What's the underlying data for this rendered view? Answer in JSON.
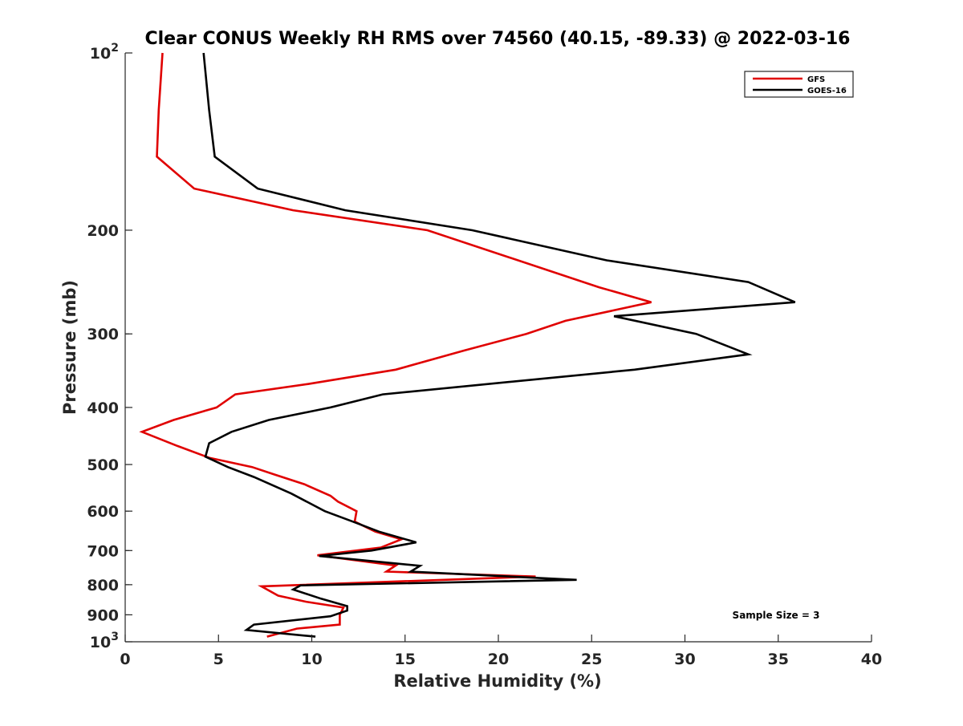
{
  "chart_data": {
    "type": "line",
    "title": "Clear CONUS Weekly RH RMS over 74560 (40.15, -89.33) @ 2022-03-16",
    "xlabel": "Relative Humidity (%)",
    "ylabel": "Pressure (mb)",
    "xlim": [
      0,
      40
    ],
    "ylim": [
      100,
      1000
    ],
    "y_scale": "log",
    "y_reversed": true,
    "x_ticks": [
      0,
      5,
      10,
      15,
      20,
      25,
      30,
      35,
      40
    ],
    "y_ticks": [
      {
        "value": 100,
        "base": "10",
        "exp": "2"
      },
      {
        "value": 200,
        "label": "200"
      },
      {
        "value": 300,
        "label": "300"
      },
      {
        "value": 400,
        "label": "400"
      },
      {
        "value": 500,
        "label": "500"
      },
      {
        "value": 600,
        "label": "600"
      },
      {
        "value": 700,
        "label": "700"
      },
      {
        "value": 800,
        "label": "800"
      },
      {
        "value": 900,
        "label": "900"
      },
      {
        "value": 1000,
        "base": "10",
        "exp": "3"
      }
    ],
    "grid": false,
    "legend_position": "top-right",
    "annotation": "Sample Size = 3",
    "series": [
      {
        "name": "GFS",
        "color": "#e00000",
        "points": [
          [
            2.0,
            100
          ],
          [
            1.8,
            125
          ],
          [
            1.7,
            150
          ],
          [
            3.7,
            170
          ],
          [
            9.0,
            185
          ],
          [
            16.2,
            200
          ],
          [
            25.4,
            250
          ],
          [
            28.2,
            265
          ],
          [
            23.6,
            285
          ],
          [
            21.5,
            300
          ],
          [
            18.2,
            320
          ],
          [
            14.5,
            345
          ],
          [
            9.8,
            365
          ],
          [
            5.9,
            380
          ],
          [
            4.9,
            400
          ],
          [
            2.6,
            420
          ],
          [
            0.9,
            440
          ],
          [
            2.8,
            465
          ],
          [
            4.5,
            487
          ],
          [
            6.8,
            505
          ],
          [
            8.0,
            520
          ],
          [
            9.6,
            540
          ],
          [
            11.0,
            565
          ],
          [
            11.4,
            578
          ],
          [
            12.4,
            600
          ],
          [
            12.3,
            625
          ],
          [
            13.4,
            650
          ],
          [
            14.8,
            670
          ],
          [
            13.7,
            692
          ],
          [
            10.3,
            713
          ],
          [
            14.5,
            742
          ],
          [
            14.0,
            760
          ],
          [
            22.0,
            775
          ],
          [
            7.3,
            805
          ],
          [
            8.2,
            835
          ],
          [
            9.7,
            855
          ],
          [
            11.7,
            875
          ],
          [
            11.5,
            900
          ],
          [
            11.5,
            935
          ],
          [
            9.2,
            950
          ],
          [
            7.6,
            980
          ]
        ]
      },
      {
        "name": "GOES-16",
        "color": "#000000",
        "points": [
          [
            4.2,
            100
          ],
          [
            4.5,
            125
          ],
          [
            4.8,
            150
          ],
          [
            7.1,
            170
          ],
          [
            11.8,
            185
          ],
          [
            18.6,
            200
          ],
          [
            25.8,
            225
          ],
          [
            33.4,
            245
          ],
          [
            35.9,
            265
          ],
          [
            26.2,
            280
          ],
          [
            30.6,
            300
          ],
          [
            33.4,
            325
          ],
          [
            27.3,
            345
          ],
          [
            13.8,
            380
          ],
          [
            11.0,
            400
          ],
          [
            7.7,
            420
          ],
          [
            5.7,
            440
          ],
          [
            4.5,
            460
          ],
          [
            4.3,
            485
          ],
          [
            5.5,
            505
          ],
          [
            6.9,
            525
          ],
          [
            8.9,
            560
          ],
          [
            10.7,
            600
          ],
          [
            12.2,
            625
          ],
          [
            13.6,
            650
          ],
          [
            15.6,
            678
          ],
          [
            13.2,
            700
          ],
          [
            10.4,
            715
          ],
          [
            15.8,
            743
          ],
          [
            15.3,
            760
          ],
          [
            24.2,
            785
          ],
          [
            9.4,
            802
          ],
          [
            9.0,
            815
          ],
          [
            10.5,
            845
          ],
          [
            11.9,
            870
          ],
          [
            11.9,
            885
          ],
          [
            11.0,
            905
          ],
          [
            6.9,
            935
          ],
          [
            6.5,
            955
          ],
          [
            10.2,
            980
          ]
        ]
      }
    ]
  }
}
